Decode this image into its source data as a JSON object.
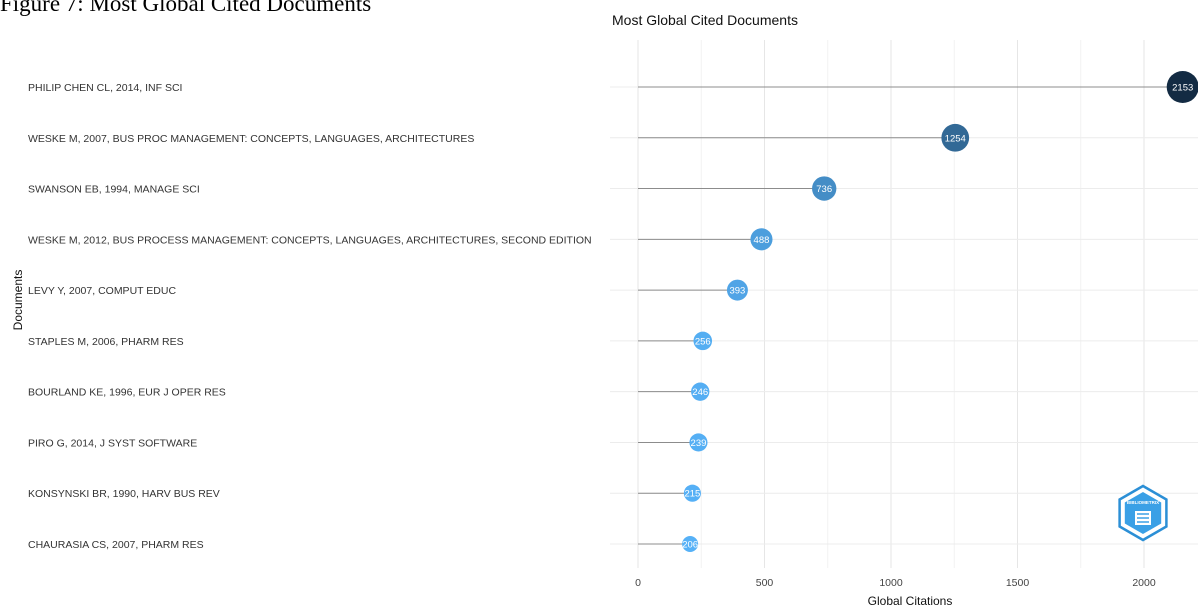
{
  "caption": "Figure 7: Most Global Cited Documents",
  "chart_data": {
    "type": "scatter",
    "title": "Most Global Cited Documents",
    "xlabel": "Global Citations",
    "ylabel": "Documents",
    "xlim": [
      0,
      2153
    ],
    "xticks": [
      0,
      500,
      1000,
      1500,
      2000
    ],
    "grid": true,
    "categories": [
      "PHILIP CHEN CL, 2014, INF SCI",
      "WESKE M, 2007, BUS PROC MANAGEMENT: CONCEPTS, LANGUAGES, ARCHITECTURES",
      "SWANSON EB, 1994, MANAGE SCI",
      "WESKE M, 2012, BUS PROCESS MANAGEMENT: CONCEPTS, LANGUAGES, ARCHITECTURES, SECOND EDITION",
      "LEVY Y, 2007, COMPUT EDUC",
      "STAPLES M, 2006, PHARM RES",
      "BOURLAND KE, 1996, EUR J OPER RES",
      "PIRO G, 2014, J SYST SOFTWARE",
      "KONSYNSKI BR, 1990, HARV BUS REV",
      "CHAURASIA CS, 2007, PHARM RES"
    ],
    "values": [
      2153,
      1254,
      736,
      488,
      393,
      256,
      246,
      239,
      215,
      206
    ],
    "value_labels": [
      "2153",
      "1254",
      "736",
      "488",
      "393",
      "256",
      "246",
      "239",
      "215",
      "206"
    ],
    "color_scale": {
      "low": "#56b1f7",
      "high": "#132b43"
    }
  },
  "logo": {
    "name": "bibliometrix-logo",
    "text": "BIBLIOMETRIX"
  }
}
